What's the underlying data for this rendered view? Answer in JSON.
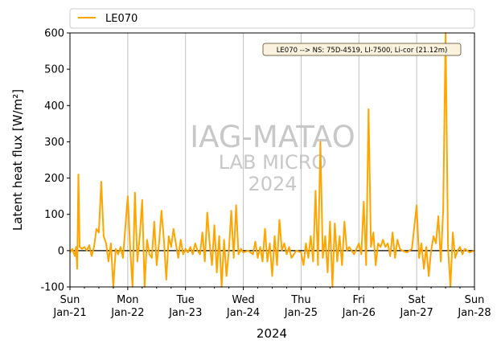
{
  "chart_data": {
    "type": "line",
    "xlabel": "2024",
    "ylabel": "Latent heat flux [W/m²]",
    "ylim": [
      -100,
      600
    ],
    "yticks": [
      -100,
      0,
      100,
      200,
      300,
      400,
      500,
      600
    ],
    "xlim": [
      "2024-01-21",
      "2024-01-28"
    ],
    "xticks": [
      {
        "day": "Sun",
        "date": "Jan-21"
      },
      {
        "day": "Mon",
        "date": "Jan-22"
      },
      {
        "day": "Tue",
        "date": "Jan-23"
      },
      {
        "day": "Wed",
        "date": "Jan-24"
      },
      {
        "day": "Thu",
        "date": "Jan-25"
      },
      {
        "day": "Fri",
        "date": "Jan-26"
      },
      {
        "day": "Sat",
        "date": "Jan-27"
      },
      {
        "day": "Sun",
        "date": "Jan-28"
      }
    ],
    "grid": "vertical",
    "legend_position": "top",
    "zero_line": true,
    "annotation": "LE070 --> NS: 75D-4519, LI-7500, Li-cor (21.12m)",
    "watermark": [
      "IAG-MATAO",
      "LAB MICRO",
      "2024"
    ],
    "series": [
      {
        "name": "LE070",
        "color": "#FFA500",
        "points": [
          [
            "2024-01-21T00:00",
            -5
          ],
          [
            "2024-01-21T01:00",
            5
          ],
          [
            "2024-01-21T02:00",
            -15
          ],
          [
            "2024-01-21T02:30",
            10
          ],
          [
            "2024-01-21T03:00",
            -50
          ],
          [
            "2024-01-21T03:30",
            210
          ],
          [
            "2024-01-21T04:00",
            10
          ],
          [
            "2024-01-21T05:00",
            5
          ],
          [
            "2024-01-21T06:00",
            10
          ],
          [
            "2024-01-21T07:00",
            0
          ],
          [
            "2024-01-21T08:00",
            15
          ],
          [
            "2024-01-21T09:00",
            -15
          ],
          [
            "2024-01-21T10:00",
            10
          ],
          [
            "2024-01-21T11:00",
            60
          ],
          [
            "2024-01-21T12:00",
            50
          ],
          [
            "2024-01-21T13:00",
            190
          ],
          [
            "2024-01-21T14:00",
            40
          ],
          [
            "2024-01-21T15:00",
            20
          ],
          [
            "2024-01-21T16:00",
            -30
          ],
          [
            "2024-01-21T17:00",
            20
          ],
          [
            "2024-01-21T18:00",
            -100
          ],
          [
            "2024-01-21T19:00",
            5
          ],
          [
            "2024-01-21T20:00",
            -10
          ],
          [
            "2024-01-21T21:00",
            10
          ],
          [
            "2024-01-21T22:00",
            -20
          ],
          [
            "2024-01-22T00:00",
            150
          ],
          [
            "2024-01-22T01:00",
            5
          ],
          [
            "2024-01-22T02:00",
            -100
          ],
          [
            "2024-01-22T03:00",
            160
          ],
          [
            "2024-01-22T04:00",
            -30
          ],
          [
            "2024-01-22T05:00",
            40
          ],
          [
            "2024-01-22T06:00",
            140
          ],
          [
            "2024-01-22T07:00",
            -100
          ],
          [
            "2024-01-22T08:00",
            30
          ],
          [
            "2024-01-22T09:00",
            -10
          ],
          [
            "2024-01-22T10:00",
            -20
          ],
          [
            "2024-01-22T11:00",
            80
          ],
          [
            "2024-01-22T12:00",
            -40
          ],
          [
            "2024-01-22T13:00",
            20
          ],
          [
            "2024-01-22T14:00",
            110
          ],
          [
            "2024-01-22T15:00",
            30
          ],
          [
            "2024-01-22T16:00",
            -80
          ],
          [
            "2024-01-22T17:00",
            40
          ],
          [
            "2024-01-22T18:00",
            10
          ],
          [
            "2024-01-22T19:00",
            60
          ],
          [
            "2024-01-22T20:00",
            20
          ],
          [
            "2024-01-22T21:00",
            -20
          ],
          [
            "2024-01-22T22:00",
            30
          ],
          [
            "2024-01-22T23:00",
            -10
          ],
          [
            "2024-01-23T00:00",
            5
          ],
          [
            "2024-01-23T01:00",
            -5
          ],
          [
            "2024-01-23T02:00",
            10
          ],
          [
            "2024-01-23T03:00",
            -10
          ],
          [
            "2024-01-23T04:00",
            20
          ],
          [
            "2024-01-23T05:00",
            0
          ],
          [
            "2024-01-23T06:00",
            -10
          ],
          [
            "2024-01-23T07:00",
            50
          ],
          [
            "2024-01-23T08:00",
            -30
          ],
          [
            "2024-01-23T09:00",
            105
          ],
          [
            "2024-01-23T10:00",
            20
          ],
          [
            "2024-01-23T11:00",
            -40
          ],
          [
            "2024-01-23T12:00",
            70
          ],
          [
            "2024-01-23T13:00",
            -60
          ],
          [
            "2024-01-23T14:00",
            40
          ],
          [
            "2024-01-23T15:00",
            -100
          ],
          [
            "2024-01-23T16:00",
            30
          ],
          [
            "2024-01-23T17:00",
            -70
          ],
          [
            "2024-01-23T18:00",
            0
          ],
          [
            "2024-01-23T19:00",
            110
          ],
          [
            "2024-01-23T20:00",
            -20
          ],
          [
            "2024-01-23T21:00",
            125
          ],
          [
            "2024-01-23T22:00",
            -10
          ],
          [
            "2024-01-23T23:00",
            5
          ],
          [
            "2024-01-24T00:00",
            -5
          ],
          [
            "2024-01-24T02:00",
            0
          ],
          [
            "2024-01-24T04:00",
            -10
          ],
          [
            "2024-01-24T05:00",
            25
          ],
          [
            "2024-01-24T06:00",
            -20
          ],
          [
            "2024-01-24T07:00",
            10
          ],
          [
            "2024-01-24T08:00",
            -30
          ],
          [
            "2024-01-24T09:00",
            60
          ],
          [
            "2024-01-24T10:00",
            -30
          ],
          [
            "2024-01-24T11:00",
            20
          ],
          [
            "2024-01-24T12:00",
            -70
          ],
          [
            "2024-01-24T13:00",
            40
          ],
          [
            "2024-01-24T14:00",
            -40
          ],
          [
            "2024-01-24T15:00",
            85
          ],
          [
            "2024-01-24T16:00",
            0
          ],
          [
            "2024-01-24T17:00",
            20
          ],
          [
            "2024-01-24T18:00",
            -10
          ],
          [
            "2024-01-24T19:00",
            10
          ],
          [
            "2024-01-24T20:00",
            -20
          ],
          [
            "2024-01-24T22:00",
            0
          ],
          [
            "2024-01-25T00:00",
            -5
          ],
          [
            "2024-01-25T01:00",
            -40
          ],
          [
            "2024-01-25T02:00",
            20
          ],
          [
            "2024-01-25T03:00",
            -20
          ],
          [
            "2024-01-25T04:00",
            40
          ],
          [
            "2024-01-25T05:00",
            -30
          ],
          [
            "2024-01-25T06:00",
            165
          ],
          [
            "2024-01-25T07:00",
            -40
          ],
          [
            "2024-01-25T08:00",
            300
          ],
          [
            "2024-01-25T09:00",
            -20
          ],
          [
            "2024-01-25T10:00",
            40
          ],
          [
            "2024-01-25T11:00",
            -60
          ],
          [
            "2024-01-25T12:00",
            80
          ],
          [
            "2024-01-25T13:00",
            -100
          ],
          [
            "2024-01-25T14:00",
            75
          ],
          [
            "2024-01-25T15:00",
            -30
          ],
          [
            "2024-01-25T16:00",
            40
          ],
          [
            "2024-01-25T17:00",
            -40
          ],
          [
            "2024-01-25T18:00",
            80
          ],
          [
            "2024-01-25T19:00",
            0
          ],
          [
            "2024-01-25T20:00",
            10
          ],
          [
            "2024-01-25T22:00",
            -10
          ],
          [
            "2024-01-26T00:00",
            20
          ],
          [
            "2024-01-26T01:00",
            -10
          ],
          [
            "2024-01-26T02:00",
            135
          ],
          [
            "2024-01-26T03:00",
            -40
          ],
          [
            "2024-01-26T04:00",
            390
          ],
          [
            "2024-01-26T05:00",
            10
          ],
          [
            "2024-01-26T06:00",
            50
          ],
          [
            "2024-01-26T07:00",
            -40
          ],
          [
            "2024-01-26T08:00",
            20
          ],
          [
            "2024-01-26T09:00",
            10
          ],
          [
            "2024-01-26T10:00",
            30
          ],
          [
            "2024-01-26T11:00",
            10
          ],
          [
            "2024-01-26T12:00",
            20
          ],
          [
            "2024-01-26T13:00",
            -15
          ],
          [
            "2024-01-26T14:00",
            50
          ],
          [
            "2024-01-26T15:00",
            -20
          ],
          [
            "2024-01-26T16:00",
            30
          ],
          [
            "2024-01-26T17:00",
            5
          ],
          [
            "2024-01-26T18:00",
            0
          ],
          [
            "2024-01-26T20:00",
            -5
          ],
          [
            "2024-01-26T22:00",
            5
          ],
          [
            "2024-01-27T00:00",
            125
          ],
          [
            "2024-01-27T01:00",
            -20
          ],
          [
            "2024-01-27T02:00",
            20
          ],
          [
            "2024-01-27T03:00",
            -50
          ],
          [
            "2024-01-27T04:00",
            10
          ],
          [
            "2024-01-27T05:00",
            -70
          ],
          [
            "2024-01-27T06:00",
            0
          ],
          [
            "2024-01-27T07:00",
            40
          ],
          [
            "2024-01-27T08:00",
            20
          ],
          [
            "2024-01-27T09:00",
            95
          ],
          [
            "2024-01-27T10:00",
            -30
          ],
          [
            "2024-01-27T11:00",
            110
          ],
          [
            "2024-01-27T12:00",
            600
          ],
          [
            "2024-01-27T13:00",
            10
          ],
          [
            "2024-01-27T14:00",
            -100
          ],
          [
            "2024-01-27T15:00",
            50
          ],
          [
            "2024-01-27T16:00",
            -20
          ],
          [
            "2024-01-27T17:00",
            0
          ],
          [
            "2024-01-27T18:00",
            10
          ],
          [
            "2024-01-27T19:00",
            -10
          ],
          [
            "2024-01-27T20:00",
            5
          ],
          [
            "2024-01-27T22:00",
            -5
          ],
          [
            "2024-01-28T00:00",
            0
          ]
        ]
      }
    ]
  }
}
